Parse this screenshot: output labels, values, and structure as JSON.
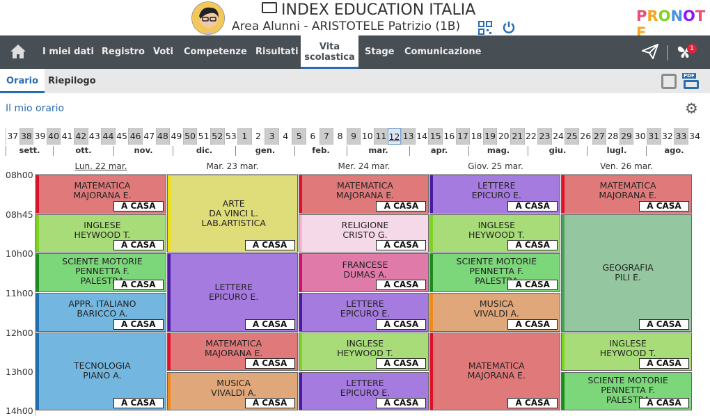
{
  "header": {
    "school": "INDEX EDUCATION ITALIA",
    "area": "Area Alunni - ARISTOTELE Patrizio (1B)",
    "logo": "PRONOTE"
  },
  "nav": {
    "items": [
      "I miei dati",
      "Registro",
      "Voti",
      "Competenze",
      "Risultati",
      "Vita scolastica",
      "Stage",
      "Comunicazione"
    ],
    "active": "Vita scolastica",
    "badge": "1"
  },
  "subtabs": [
    "Orario",
    "Riepilogo"
  ],
  "page_title": "Il mio orario",
  "weeks": [
    "37",
    "38",
    "39",
    "40",
    "41",
    "42",
    "43",
    "44",
    "45",
    "46",
    "47",
    "48",
    "49",
    "50",
    "51",
    "52",
    "53",
    "1",
    "2",
    "3",
    "4",
    "5",
    "6",
    "7",
    "8",
    "9",
    "10",
    "11",
    "12",
    "13",
    "14",
    "15",
    "16",
    "17",
    "18",
    "19",
    "20",
    "21",
    "22",
    "23",
    "24",
    "25",
    "26",
    "27",
    "28",
    "29",
    "30",
    "31",
    "32",
    "33",
    "34"
  ],
  "current_week": "12",
  "months": [
    "sett.",
    "ott.",
    "nov.",
    "dic.",
    "gen.",
    "feb.",
    "mar.",
    "apr.",
    "mag.",
    "giu.",
    "lugl.",
    "ago."
  ],
  "hours": [
    "08h00",
    "08h45",
    "10h00",
    "11h00",
    "12h00",
    "13h00",
    "14h00"
  ],
  "days": [
    "Lun. 22 mar.",
    "Mar. 23 mar.",
    "Mer. 24 mar.",
    "Giov. 25 mar.",
    "Ven. 26 mar."
  ],
  "casa_label": "A CASA",
  "lessons": [
    {
      "day": 0,
      "start": 0,
      "end": 1,
      "l1": "MATEMATICA",
      "l2": "MAJORANA E.",
      "l3": "",
      "bg": "#e07a7a",
      "bar": "#e0102a"
    },
    {
      "day": 0,
      "start": 1,
      "end": 2,
      "l1": "INGLESE",
      "l2": "HEYWOOD T.",
      "l3": "",
      "bg": "#a8dc78",
      "bar": "#7ed321"
    },
    {
      "day": 0,
      "start": 2,
      "end": 3,
      "l1": "SCIENTE MOTORIE",
      "l2": "PENNETTA F.",
      "l3": "PALESTRA",
      "bg": "#7bd77a",
      "bar": "#1e8a1e"
    },
    {
      "day": 0,
      "start": 3,
      "end": 4,
      "l1": "APPR. ITALIANO",
      "l2": "BARICCO A.",
      "l3": "",
      "bg": "#73b7e0",
      "bar": "#1f6fb3"
    },
    {
      "day": 0,
      "start": 4,
      "end": 6,
      "l1": "TECNOLOGIA",
      "l2": "PIANO A.",
      "l3": "",
      "bg": "#73b7e0",
      "bar": "#1f6fb3"
    },
    {
      "day": 1,
      "start": 0,
      "end": 2,
      "l1": "ARTE",
      "l2": "DA VINCI L.",
      "l3": "LAB.ARTISTICA",
      "bg": "#dfdc7a",
      "bar": "#f2e600"
    },
    {
      "day": 1,
      "start": 2,
      "end": 4,
      "l1": "LETTERE",
      "l2": "EPICURO E.",
      "l3": "",
      "bg": "#a67be0",
      "bar": "#4a1aa0"
    },
    {
      "day": 1,
      "start": 4,
      "end": 5,
      "l1": "MATEMATICA",
      "l2": "MAJORANA E.",
      "l3": "",
      "bg": "#e07a7a",
      "bar": "#e0102a"
    },
    {
      "day": 1,
      "start": 5,
      "end": 6,
      "l1": "MUSICA",
      "l2": "VIVALDI A.",
      "l3": "",
      "bg": "#e0a87a",
      "bar": "#f08a1a"
    },
    {
      "day": 2,
      "start": 0,
      "end": 1,
      "l1": "MATEMATICA",
      "l2": "MAJORANA E.",
      "l3": "",
      "bg": "#e07a7a",
      "bar": "#e0102a"
    },
    {
      "day": 2,
      "start": 1,
      "end": 2,
      "l1": "RELIGIONE",
      "l2": "CRISTO G.",
      "l3": "",
      "bg": "#f5d9e8",
      "bar": "#f5b5d3"
    },
    {
      "day": 2,
      "start": 2,
      "end": 3,
      "l1": "FRANCESE",
      "l2": "DUMAS A.",
      "l3": "",
      "bg": "#e07aa8",
      "bar": "#d0106a"
    },
    {
      "day": 2,
      "start": 3,
      "end": 4,
      "l1": "LETTERE",
      "l2": "EPICURO E.",
      "l3": "",
      "bg": "#a67be0",
      "bar": "#4a1aa0"
    },
    {
      "day": 2,
      "start": 4,
      "end": 5,
      "l1": "INGLESE",
      "l2": "HEYWOOD T.",
      "l3": "",
      "bg": "#a8dc78",
      "bar": "#7ed321"
    },
    {
      "day": 2,
      "start": 5,
      "end": 6,
      "l1": "LETTERE",
      "l2": "EPICURO E.",
      "l3": "",
      "bg": "#a67be0",
      "bar": "#4a1aa0"
    },
    {
      "day": 3,
      "start": 0,
      "end": 1,
      "l1": "LETTERE",
      "l2": "EPICURO E.",
      "l3": "",
      "bg": "#a67be0",
      "bar": "#4a1aa0"
    },
    {
      "day": 3,
      "start": 1,
      "end": 2,
      "l1": "INGLESE",
      "l2": "HEYWOOD T.",
      "l3": "",
      "bg": "#a8dc78",
      "bar": "#7ed321"
    },
    {
      "day": 3,
      "start": 2,
      "end": 3,
      "l1": "SCIENTE MOTORIE",
      "l2": "PENNETTA F.",
      "l3": "PALESTRA",
      "bg": "#7bd77a",
      "bar": "#1e8a1e"
    },
    {
      "day": 3,
      "start": 3,
      "end": 4,
      "l1": "MUSICA",
      "l2": "VIVALDI A.",
      "l3": "",
      "bg": "#e0a87a",
      "bar": "#f08a1a"
    },
    {
      "day": 3,
      "start": 4,
      "end": 6,
      "l1": "MATEMATICA",
      "l2": "MAJORANA E.",
      "l3": "",
      "bg": "#e07a7a",
      "bar": "#e0102a"
    },
    {
      "day": 4,
      "start": 0,
      "end": 1,
      "l1": "MATEMATICA",
      "l2": "MAJORANA E.",
      "l3": "",
      "bg": "#e07a7a",
      "bar": "#e0102a"
    },
    {
      "day": 4,
      "start": 1,
      "end": 4,
      "l1": "GEOGRAFIA",
      "l2": "PILI E.",
      "l3": "",
      "bg": "#94c7a0",
      "bar": "#4aa05a"
    },
    {
      "day": 4,
      "start": 4,
      "end": 5,
      "l1": "INGLESE",
      "l2": "HEYWOOD T.",
      "l3": "",
      "bg": "#a8dc78",
      "bar": "#7ed321"
    },
    {
      "day": 4,
      "start": 5,
      "end": 6,
      "l1": "SCIENTE MOTORIE",
      "l2": "PENNETTA F.",
      "l3": "PALESTRA",
      "bg": "#7bd77a",
      "bar": "#1e8a1e"
    }
  ]
}
